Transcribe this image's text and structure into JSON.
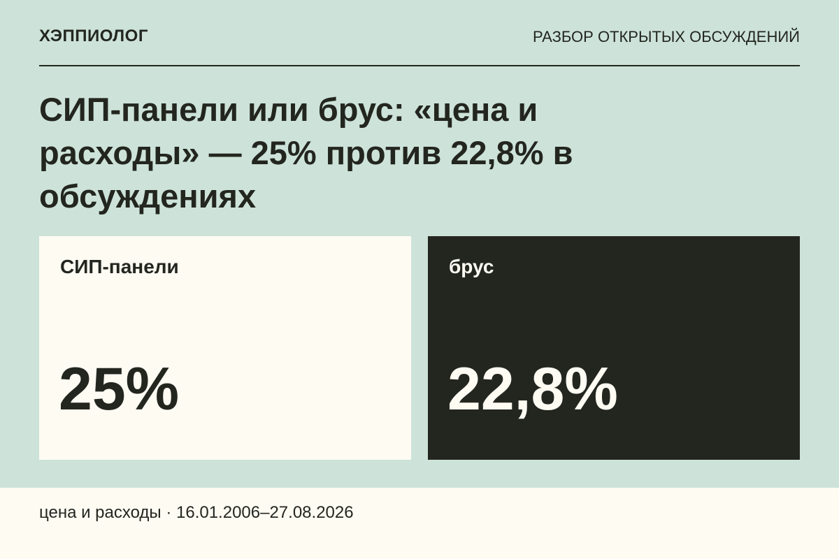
{
  "header": {
    "brand": "ХЭППИОЛОГ",
    "section": "РАЗБОР ОТКРЫТЫХ ОБСУЖДЕНИЙ"
  },
  "title": "СИП-панели или брус: «цена и расходы» — 25% против 22,8% в обсуждениях",
  "cards": [
    {
      "label": "СИП-панели",
      "value": "25%"
    },
    {
      "label": "брус",
      "value": "22,8%"
    }
  ],
  "footer": "цена и расходы · 16.01.2006–27.08.2026"
}
